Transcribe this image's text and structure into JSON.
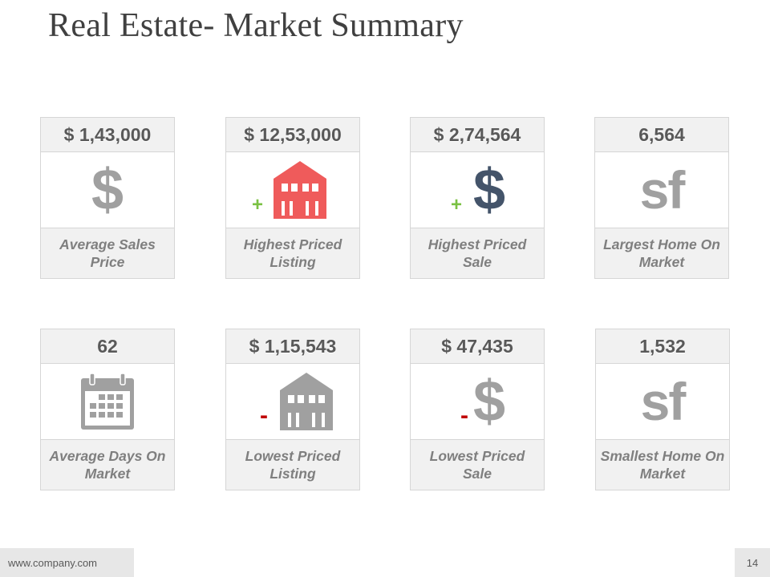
{
  "title": "Real Estate- Market Summary",
  "colors": {
    "gray_icon": "#a0a0a0",
    "red_house": "#ef5b5b",
    "navy_dollar": "#44546a",
    "plus_green": "#7ac143",
    "minus_red": "#c00000"
  },
  "cards": [
    {
      "value": "$ 1,43,000",
      "label": "Average Sales Price",
      "icon": "dollar-icon",
      "glyph": "$",
      "sign": ""
    },
    {
      "value": "$ 12,53,000",
      "label": "Highest Priced Listing",
      "icon": "house-icon",
      "glyph": "",
      "sign": "+"
    },
    {
      "value": "$ 2,74,564",
      "label": "Highest Priced Sale",
      "icon": "dollar-icon",
      "glyph": "$",
      "sign": "+"
    },
    {
      "value": "6,564",
      "label": "Largest  Home On Market",
      "icon": "square-feet-icon",
      "glyph": "sf",
      "sign": ""
    },
    {
      "value": "62",
      "label": "Average Days On Market",
      "icon": "calendar-icon",
      "glyph": "",
      "sign": ""
    },
    {
      "value": "$ 1,15,543",
      "label": "Lowest Priced Listing",
      "icon": "house-icon",
      "glyph": "",
      "sign": "-"
    },
    {
      "value": "$ 47,435",
      "label": "Lowest Priced Sale",
      "icon": "dollar-icon",
      "glyph": "$",
      "sign": "-"
    },
    {
      "value": "1,532",
      "label": "Smallest Home On Market",
      "icon": "square-feet-icon",
      "glyph": "sf",
      "sign": ""
    }
  ],
  "footer": {
    "website": "www.company.com",
    "page_number": "14"
  }
}
